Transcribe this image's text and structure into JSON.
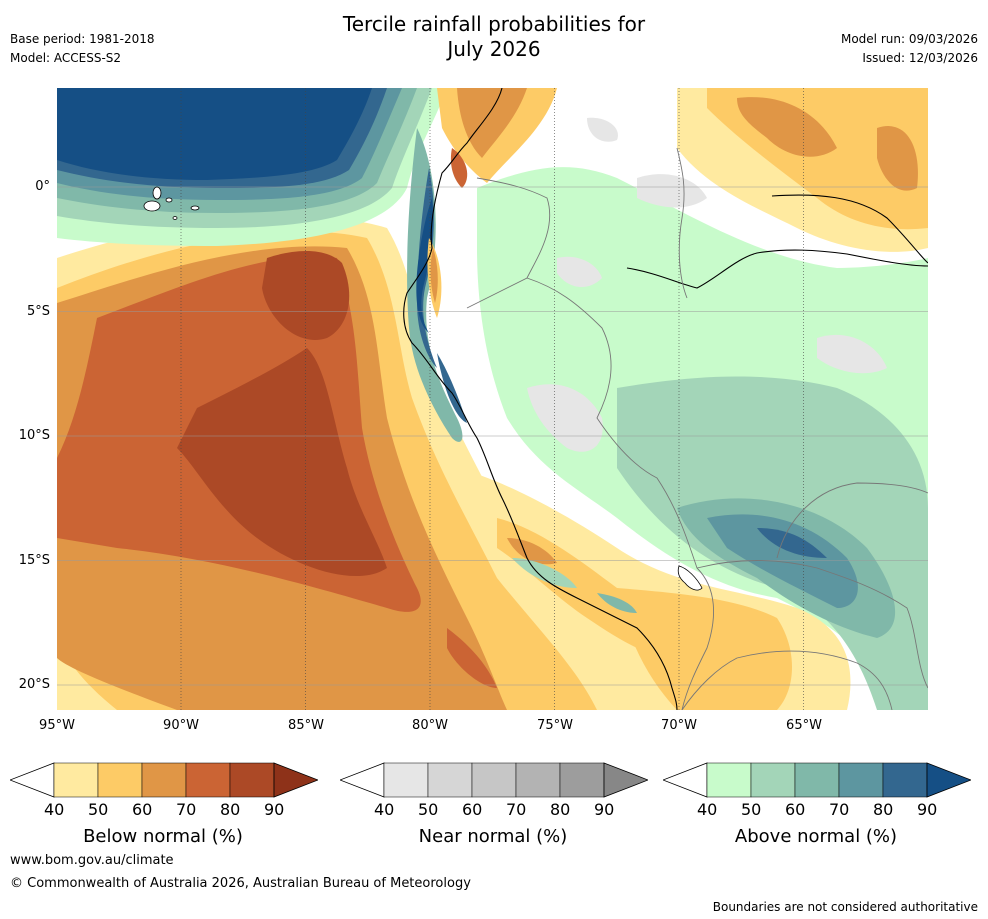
{
  "header": {
    "title_line1": "Tercile rainfall probabilities for",
    "title_line2": "July 2026",
    "base_period": "Base period: 1981-2018",
    "model": "Model: ACCESS-S2",
    "model_run": "Model run: 09/03/2026",
    "issued": "Issued: 12/03/2026"
  },
  "map": {
    "lat_labels": [
      "0°",
      "5°S",
      "10°S",
      "15°S",
      "20°S"
    ],
    "lon_labels": [
      "95°W",
      "90°W",
      "85°W",
      "80°W",
      "75°W",
      "70°W",
      "65°W"
    ]
  },
  "colorbars": [
    {
      "name": "below",
      "title": "Below normal (%)",
      "ticks": [
        "40",
        "50",
        "60",
        "70",
        "80",
        "90"
      ],
      "colors": [
        "#ffffff",
        "#ffeaa0",
        "#fdcb66",
        "#e09646",
        "#cb6434",
        "#ac4926",
        "#8e3219"
      ]
    },
    {
      "name": "near",
      "title": "Near normal (%)",
      "ticks": [
        "40",
        "50",
        "60",
        "70",
        "80",
        "90"
      ],
      "colors": [
        "#ffffff",
        "#e6e6e6",
        "#d6d6d6",
        "#c6c6c6",
        "#b3b3b3",
        "#9d9d9d",
        "#878787"
      ]
    },
    {
      "name": "above",
      "title": "Above normal (%)",
      "ticks": [
        "40",
        "50",
        "60",
        "70",
        "80",
        "90"
      ],
      "colors": [
        "#ffffff",
        "#c8fbcb",
        "#a3d5b8",
        "#80b8a9",
        "#5d96a0",
        "#33678f",
        "#154f85"
      ]
    }
  ],
  "footer": {
    "website": "www.bom.gov.au/climate",
    "copyright": "© Commonwealth of Australia 2026, Australian Bureau of Meteorology",
    "disclaimer": "Boundaries are not considered authoritative"
  }
}
